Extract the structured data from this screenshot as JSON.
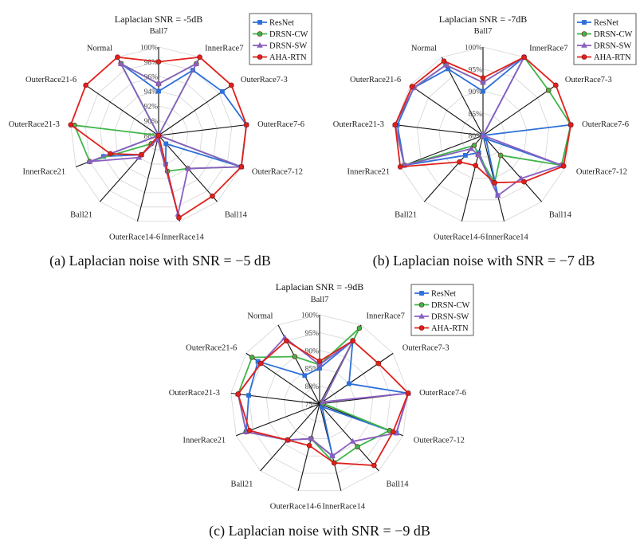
{
  "figure": {
    "captions": [
      "(a) Laplacian noise with SNR = −5 dB",
      "(b) Laplacian noise with SNR = −7 dB",
      "(c) Laplacian noise with SNR = −9 dB"
    ]
  },
  "series_colors": {
    "ResNet": "#2e6fd8",
    "DRSN-CW": "#3fb54a",
    "DRSN-SW": "#8a5fc0",
    "AHA-RTN": "#e0201c"
  },
  "series_markers": {
    "ResNet": "square",
    "DRSN-CW": "circle",
    "DRSN-SW": "triangle",
    "AHA-RTN": "circle"
  },
  "chart_data": [
    {
      "type": "radar",
      "title": "Laplacian SNR = -5dB",
      "categories": [
        "Ball7",
        "InnerRace7",
        "OuterRace7-3",
        "OuterRace7-6",
        "OuterRace7-12",
        "Ball14",
        "InnerRace14",
        "OuterRace14-6",
        "Ball21",
        "InnerRace21",
        "OuterRace21-3",
        "OuterRace21-6",
        "Normal"
      ],
      "ticks": [
        "88%",
        "90%",
        "92%",
        "94%",
        "96%",
        "98%",
        "100%"
      ],
      "rlim": [
        88,
        100
      ],
      "legend": "top-right",
      "series": [
        {
          "name": "ResNet",
          "values": [
            94,
            98,
            98.5,
            100,
            100,
            89.5,
            92,
            88.5,
            91.5,
            96,
            88,
            88,
            99
          ]
        },
        {
          "name": "DRSN-CW",
          "values": [
            95,
            99,
            88,
            88,
            100,
            94,
            93,
            88.5,
            89.5,
            98,
            99.5,
            88,
            99
          ]
        },
        {
          "name": "DRSN-SW",
          "values": [
            95,
            99,
            88,
            88,
            100,
            94,
            99,
            88.5,
            92,
            98,
            88,
            88,
            99
          ]
        },
        {
          "name": "AHA-RTN",
          "values": [
            98,
            100,
            100,
            100,
            100,
            99,
            99.5,
            88,
            91.5,
            95,
            100,
            100,
            100
          ]
        }
      ]
    },
    {
      "type": "radar",
      "title": "Laplacian SNR = -7dB",
      "categories": [
        "Ball7",
        "InnerRace7",
        "OuterRace7-3",
        "OuterRace7-6",
        "OuterRace7-12",
        "Ball14",
        "InnerRace14",
        "OuterRace14-6",
        "Ball21",
        "InnerRace21",
        "OuterRace21-3",
        "OuterRace21-6",
        "Normal"
      ],
      "ticks": [
        "80%",
        "85%",
        "90%",
        "95%",
        "100%"
      ],
      "rlim": [
        80,
        100
      ],
      "legend": "top-right",
      "series": [
        {
          "name": "ResNet",
          "values": [
            90,
            100,
            80,
            100,
            99,
            81,
            94,
            84,
            86,
            99,
            99.5,
            99,
            97
          ]
        },
        {
          "name": "DRSN-CW",
          "values": [
            92,
            100,
            98,
            100,
            99,
            86,
            91,
            84.5,
            83,
            99,
            100,
            99,
            98
          ]
        },
        {
          "name": "DRSN-SW",
          "values": [
            92,
            100,
            80,
            80,
            99,
            93,
            94,
            84.5,
            84,
            99,
            100,
            99,
            98
          ]
        },
        {
          "name": "AHA-RTN",
          "values": [
            93,
            100,
            100,
            100,
            99.5,
            94,
            91,
            87,
            88,
            100,
            100,
            99.5,
            99
          ]
        }
      ]
    },
    {
      "type": "radar",
      "title": "Laplacian SNR = -9dB",
      "categories": [
        "Ball7",
        "InnerRace7",
        "OuterRace7-3",
        "OuterRace7-6",
        "OuterRace7-12",
        "Ball14",
        "InnerRace14",
        "OuterRace14-6",
        "Ball21",
        "InnerRace21",
        "OuterRace21-3",
        "OuterRace21-6",
        "Normal"
      ],
      "ticks": [
        "75%",
        "80%",
        "85%",
        "90%",
        "95%",
        "100%"
      ],
      "rlim": [
        75,
        100
      ],
      "legend": "top-right",
      "series": [
        {
          "name": "ResNet",
          "values": [
            85,
            95,
            85,
            100,
            98,
            76,
            90,
            85,
            88.5,
            97,
            95,
            96,
            84
          ]
        },
        {
          "name": "DRSN-CW",
          "values": [
            86,
            99,
            76,
            76,
            96,
            91,
            92,
            85,
            88.5,
            97,
            98,
            98,
            90
          ]
        },
        {
          "name": "DRSN-SW",
          "values": [
            86,
            95,
            76,
            100,
            98,
            89,
            90,
            85,
            88.5,
            97,
            98,
            95,
            96
          ]
        },
        {
          "name": "AHA-RTN",
          "values": [
            87,
            95,
            95,
            100,
            97,
            98,
            92,
            87,
            88.5,
            96,
            98,
            95,
            95
          ]
        }
      ]
    }
  ]
}
